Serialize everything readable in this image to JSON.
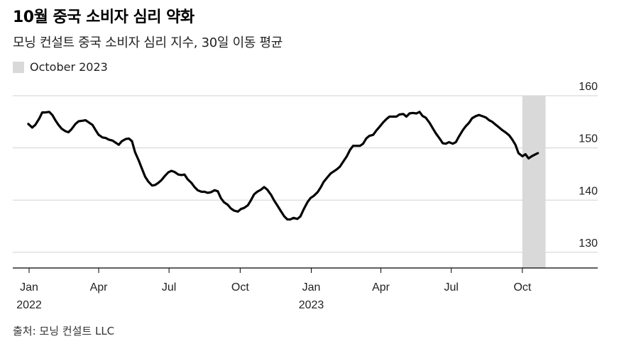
{
  "header": {
    "title": "10월 중국 소비자 심리 약화",
    "subtitle": "모닝 컨설트 중국 소비자 심리 지수, 30일 이동 평균"
  },
  "legend": {
    "label": "October 2023",
    "color": "#d9d9d9"
  },
  "source": "출처: 모닝 컨설트 LLC",
  "chart_data": {
    "type": "line",
    "title": "10월 중국 소비자 심리 약화",
    "subtitle": "모닝 컨설트 중국 소비자 심리 지수, 30일 이동 평균",
    "ylim": [
      127,
      160
    ],
    "y_ticks": [
      160,
      150,
      140,
      130
    ],
    "y_axis_side": "right",
    "grid": true,
    "x_ticks": [
      {
        "label": "Jan",
        "year": "2022",
        "date": "2022-01-01"
      },
      {
        "label": "Apr",
        "year": "",
        "date": "2022-04-01"
      },
      {
        "label": "Jul",
        "year": "",
        "date": "2022-07-01"
      },
      {
        "label": "Oct",
        "year": "",
        "date": "2022-10-01"
      },
      {
        "label": "Jan",
        "year": "2023",
        "date": "2023-01-01"
      },
      {
        "label": "Apr",
        "year": "",
        "date": "2023-04-01"
      },
      {
        "label": "Jul",
        "year": "",
        "date": "2023-07-01"
      },
      {
        "label": "Oct",
        "year": "",
        "date": "2023-10-01"
      }
    ],
    "xlim": [
      "2022-01-01",
      "2023-12-31"
    ],
    "highlight": {
      "label": "October 2023",
      "start": "2023-10-01",
      "end": "2023-10-31",
      "color": "#d9d9d9"
    },
    "series": [
      {
        "color": "#000000",
        "points": [
          [
            "2021-12-31",
            154.6
          ],
          [
            "2022-01-05",
            153.9
          ],
          [
            "2022-01-09",
            154.4
          ],
          [
            "2022-01-14",
            155.6
          ],
          [
            "2022-01-18",
            156.8
          ],
          [
            "2022-01-22",
            156.8
          ],
          [
            "2022-01-27",
            156.9
          ],
          [
            "2022-01-31",
            156.3
          ],
          [
            "2022-02-04",
            155.3
          ],
          [
            "2022-02-08",
            154.4
          ],
          [
            "2022-02-12",
            153.7
          ],
          [
            "2022-02-17",
            153.2
          ],
          [
            "2022-02-21",
            153.0
          ],
          [
            "2022-02-25",
            153.6
          ],
          [
            "2022-03-02",
            154.6
          ],
          [
            "2022-03-06",
            155.1
          ],
          [
            "2022-03-11",
            155.2
          ],
          [
            "2022-03-15",
            155.3
          ],
          [
            "2022-03-19",
            154.9
          ],
          [
            "2022-03-24",
            154.4
          ],
          [
            "2022-03-28",
            153.4
          ],
          [
            "2022-04-01",
            152.5
          ],
          [
            "2022-04-06",
            152.0
          ],
          [
            "2022-04-10",
            151.9
          ],
          [
            "2022-04-14",
            151.6
          ],
          [
            "2022-04-19",
            151.4
          ],
          [
            "2022-04-23",
            151.0
          ],
          [
            "2022-04-27",
            150.6
          ],
          [
            "2022-05-01",
            151.3
          ],
          [
            "2022-05-06",
            151.7
          ],
          [
            "2022-05-10",
            151.8
          ],
          [
            "2022-05-14",
            151.3
          ],
          [
            "2022-05-18",
            149.2
          ],
          [
            "2022-05-23",
            147.5
          ],
          [
            "2022-05-27",
            146.0
          ],
          [
            "2022-05-31",
            144.5
          ],
          [
            "2022-06-04",
            143.6
          ],
          [
            "2022-06-09",
            142.8
          ],
          [
            "2022-06-13",
            142.9
          ],
          [
            "2022-06-17",
            143.3
          ],
          [
            "2022-06-21",
            143.8
          ],
          [
            "2022-06-26",
            144.7
          ],
          [
            "2022-06-30",
            145.3
          ],
          [
            "2022-07-04",
            145.6
          ],
          [
            "2022-07-08",
            145.4
          ],
          [
            "2022-07-13",
            144.9
          ],
          [
            "2022-07-17",
            144.8
          ],
          [
            "2022-07-21",
            144.9
          ],
          [
            "2022-07-25",
            144.0
          ],
          [
            "2022-07-30",
            143.3
          ],
          [
            "2022-08-03",
            142.5
          ],
          [
            "2022-08-07",
            141.9
          ],
          [
            "2022-08-12",
            141.6
          ],
          [
            "2022-08-16",
            141.6
          ],
          [
            "2022-08-20",
            141.4
          ],
          [
            "2022-08-24",
            141.5
          ],
          [
            "2022-08-29",
            141.9
          ],
          [
            "2022-09-02",
            141.7
          ],
          [
            "2022-09-06",
            140.4
          ],
          [
            "2022-09-10",
            139.6
          ],
          [
            "2022-09-15",
            139.1
          ],
          [
            "2022-09-19",
            138.4
          ],
          [
            "2022-09-23",
            138.0
          ],
          [
            "2022-09-28",
            137.8
          ],
          [
            "2022-10-02",
            138.3
          ],
          [
            "2022-10-06",
            138.5
          ],
          [
            "2022-10-11",
            139.0
          ],
          [
            "2022-10-15",
            140.0
          ],
          [
            "2022-10-19",
            141.1
          ],
          [
            "2022-10-23",
            141.6
          ],
          [
            "2022-10-28",
            142.0
          ],
          [
            "2022-11-01",
            142.5
          ],
          [
            "2022-11-05",
            142.0
          ],
          [
            "2022-11-10",
            141.0
          ],
          [
            "2022-11-14",
            139.9
          ],
          [
            "2022-11-18",
            139.0
          ],
          [
            "2022-11-23",
            137.8
          ],
          [
            "2022-11-27",
            136.9
          ],
          [
            "2022-12-01",
            136.3
          ],
          [
            "2022-12-05",
            136.3
          ],
          [
            "2022-12-09",
            136.6
          ],
          [
            "2022-12-14",
            136.4
          ],
          [
            "2022-12-18",
            136.9
          ],
          [
            "2022-12-22",
            138.2
          ],
          [
            "2022-12-27",
            139.6
          ],
          [
            "2022-12-31",
            140.4
          ],
          [
            "2023-01-04",
            140.8
          ],
          [
            "2023-01-09",
            141.5
          ],
          [
            "2023-01-13",
            142.4
          ],
          [
            "2023-01-17",
            143.5
          ],
          [
            "2023-01-22",
            144.4
          ],
          [
            "2023-01-26",
            145.1
          ],
          [
            "2023-01-30",
            145.5
          ],
          [
            "2023-02-03",
            145.9
          ],
          [
            "2023-02-07",
            146.4
          ],
          [
            "2023-02-11",
            147.3
          ],
          [
            "2023-02-16",
            148.4
          ],
          [
            "2023-02-20",
            149.6
          ],
          [
            "2023-02-24",
            150.4
          ],
          [
            "2023-02-28",
            150.4
          ],
          [
            "2023-03-05",
            150.4
          ],
          [
            "2023-03-09",
            150.8
          ],
          [
            "2023-03-13",
            151.8
          ],
          [
            "2023-03-17",
            152.3
          ],
          [
            "2023-03-22",
            152.5
          ],
          [
            "2023-03-26",
            153.3
          ],
          [
            "2023-03-30",
            154.0
          ],
          [
            "2023-04-04",
            154.9
          ],
          [
            "2023-04-08",
            155.5
          ],
          [
            "2023-04-12",
            156.0
          ],
          [
            "2023-04-17",
            156.0
          ],
          [
            "2023-04-21",
            156.0
          ],
          [
            "2023-04-25",
            156.4
          ],
          [
            "2023-04-30",
            156.5
          ],
          [
            "2023-05-04",
            156.0
          ],
          [
            "2023-05-08",
            156.6
          ],
          [
            "2023-05-12",
            156.7
          ],
          [
            "2023-05-17",
            156.6
          ],
          [
            "2023-05-21",
            156.9
          ],
          [
            "2023-05-25",
            156.1
          ],
          [
            "2023-05-29",
            155.8
          ],
          [
            "2023-06-03",
            154.8
          ],
          [
            "2023-06-07",
            153.8
          ],
          [
            "2023-06-11",
            152.8
          ],
          [
            "2023-06-16",
            151.8
          ],
          [
            "2023-06-20",
            150.9
          ],
          [
            "2023-06-24",
            150.8
          ],
          [
            "2023-06-28",
            151.1
          ],
          [
            "2023-07-03",
            150.8
          ],
          [
            "2023-07-07",
            151.1
          ],
          [
            "2023-07-11",
            152.2
          ],
          [
            "2023-07-16",
            153.4
          ],
          [
            "2023-07-20",
            154.2
          ],
          [
            "2023-07-24",
            154.8
          ],
          [
            "2023-07-28",
            155.7
          ],
          [
            "2023-08-02",
            156.1
          ],
          [
            "2023-08-06",
            156.3
          ],
          [
            "2023-08-10",
            156.1
          ],
          [
            "2023-08-15",
            155.8
          ],
          [
            "2023-08-19",
            155.3
          ],
          [
            "2023-08-23",
            155.0
          ],
          [
            "2023-08-27",
            154.5
          ],
          [
            "2023-09-01",
            153.9
          ],
          [
            "2023-09-05",
            153.4
          ],
          [
            "2023-09-09",
            153.0
          ],
          [
            "2023-09-14",
            152.4
          ],
          [
            "2023-09-18",
            151.6
          ],
          [
            "2023-09-22",
            150.6
          ],
          [
            "2023-09-26",
            149.0
          ],
          [
            "2023-10-01",
            148.4
          ],
          [
            "2023-10-05",
            148.8
          ],
          [
            "2023-10-09",
            148.0
          ],
          [
            "2023-10-13",
            148.4
          ],
          [
            "2023-10-17",
            148.7
          ],
          [
            "2023-10-21",
            149.0
          ]
        ]
      }
    ]
  }
}
